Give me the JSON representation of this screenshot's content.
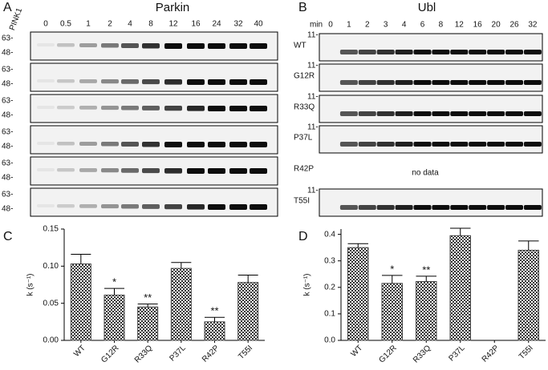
{
  "blots": {
    "A": {
      "label": "A",
      "title": "Parkin",
      "lanes": [
        "PINK1",
        "0",
        "0.5",
        "1",
        "2",
        "4",
        "8",
        "12",
        "16",
        "24",
        "32",
        "40"
      ],
      "markers": [
        "63-",
        "48-"
      ]
    },
    "B": {
      "label": "B",
      "title": "Ubl",
      "unit": "min",
      "lanes": [
        "0",
        "1",
        "2",
        "3",
        "4",
        "6",
        "8",
        "12",
        "16",
        "20",
        "26",
        "32"
      ],
      "marker": "11-",
      "rows": [
        "WT",
        "G12R",
        "R33Q",
        "P37L",
        "R42P",
        "T55I"
      ],
      "no_data": "no data"
    }
  },
  "chart_data": [
    {
      "type": "bar",
      "panel": "C",
      "ylabel": "k (s⁻¹)",
      "categories": [
        "WT",
        "G12R",
        "R33Q",
        "P37L",
        "R42P",
        "T55I"
      ],
      "values": [
        0.103,
        0.061,
        0.045,
        0.097,
        0.025,
        0.078
      ],
      "errors": [
        0.013,
        0.009,
        0.004,
        0.008,
        0.006,
        0.01
      ],
      "significance": [
        null,
        "*",
        "**",
        null,
        "**",
        null
      ],
      "ylim": [
        0,
        0.15
      ],
      "yticks": [
        {
          "value": 0,
          "label": "0.00"
        },
        0.05,
        {
          "value": 0.1,
          "label": "0.10"
        },
        0.15
      ],
      "color": "#444444"
    },
    {
      "type": "bar",
      "panel": "D",
      "ylabel": "k (s⁻¹)",
      "categories": [
        "WT",
        "G12R",
        "R33Q",
        "P37L",
        "R42P",
        "T55I"
      ],
      "values": [
        0.35,
        0.215,
        0.222,
        0.395,
        null,
        0.34
      ],
      "errors": [
        0.015,
        0.03,
        0.02,
        0.028,
        null,
        0.035
      ],
      "significance": [
        null,
        "*",
        "**",
        null,
        null,
        null
      ],
      "ylim": [
        0,
        0.42
      ],
      "yticks": [
        {
          "value": 0,
          "label": "0.0"
        },
        0.1,
        0.2,
        0.3,
        0.4
      ],
      "color": "#444444"
    }
  ]
}
